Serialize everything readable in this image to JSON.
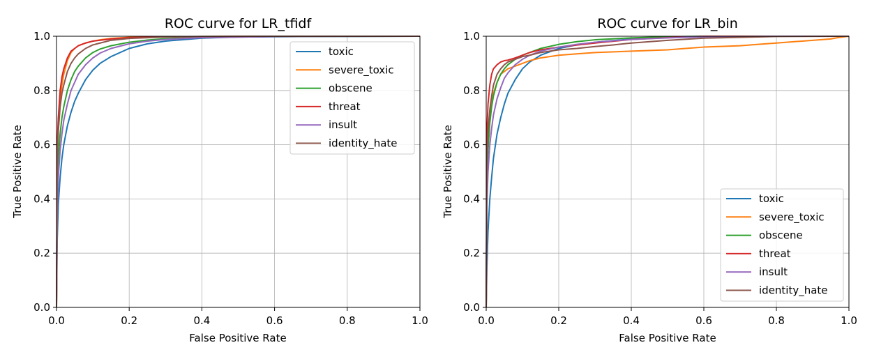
{
  "chart_data": [
    {
      "type": "line",
      "title": "ROC curve for LR_tfidf",
      "xlabel": "False Positive Rate",
      "ylabel": "True Positive Rate",
      "xlim": [
        0.0,
        1.0
      ],
      "ylim": [
        0.0,
        1.0
      ],
      "xticks": [
        "0.0",
        "0.2",
        "0.4",
        "0.6",
        "0.8",
        "1.0"
      ],
      "yticks": [
        "0.0",
        "0.2",
        "0.4",
        "0.6",
        "0.8",
        "1.0"
      ],
      "grid": true,
      "legend_position": "upper right",
      "series": [
        {
          "name": "toxic",
          "color": "#1f77b4",
          "x": [
            0,
            0.002,
            0.005,
            0.01,
            0.015,
            0.02,
            0.03,
            0.04,
            0.05,
            0.06,
            0.08,
            0.1,
            0.12,
            0.15,
            0.2,
            0.25,
            0.3,
            0.4,
            0.5,
            0.7,
            1.0
          ],
          "y": [
            0,
            0.25,
            0.38,
            0.48,
            0.55,
            0.6,
            0.67,
            0.72,
            0.76,
            0.79,
            0.84,
            0.875,
            0.9,
            0.925,
            0.955,
            0.972,
            0.982,
            0.993,
            0.997,
            0.999,
            1.0
          ]
        },
        {
          "name": "severe_toxic",
          "color": "#ff7f0e",
          "x": [
            0,
            0.002,
            0.005,
            0.01,
            0.015,
            0.02,
            0.03,
            0.04,
            0.05,
            0.06,
            0.08,
            0.1,
            0.12,
            0.15,
            0.2,
            0.3,
            0.4,
            0.6,
            1.0
          ],
          "y": [
            0,
            0.55,
            0.66,
            0.76,
            0.82,
            0.86,
            0.91,
            0.94,
            0.955,
            0.965,
            0.975,
            0.982,
            0.987,
            0.992,
            0.996,
            0.998,
            0.999,
            1.0,
            1.0
          ]
        },
        {
          "name": "obscene",
          "color": "#2ca02c",
          "x": [
            0,
            0.002,
            0.005,
            0.01,
            0.015,
            0.02,
            0.03,
            0.04,
            0.05,
            0.06,
            0.08,
            0.1,
            0.12,
            0.15,
            0.2,
            0.25,
            0.3,
            0.4,
            0.6,
            1.0
          ],
          "y": [
            0,
            0.4,
            0.55,
            0.64,
            0.7,
            0.74,
            0.8,
            0.84,
            0.87,
            0.89,
            0.92,
            0.94,
            0.953,
            0.965,
            0.978,
            0.986,
            0.991,
            0.996,
            0.999,
            1.0
          ]
        },
        {
          "name": "threat",
          "color": "#d62728",
          "x": [
            0,
            0.002,
            0.005,
            0.01,
            0.015,
            0.02,
            0.03,
            0.04,
            0.05,
            0.06,
            0.08,
            0.1,
            0.15,
            0.2,
            0.3,
            0.6,
            1.0
          ],
          "y": [
            0,
            0.6,
            0.7,
            0.8,
            0.85,
            0.88,
            0.92,
            0.945,
            0.955,
            0.965,
            0.975,
            0.982,
            0.99,
            0.995,
            0.998,
            1.0,
            1.0
          ]
        },
        {
          "name": "insult",
          "color": "#9467bd",
          "x": [
            0,
            0.002,
            0.005,
            0.01,
            0.015,
            0.02,
            0.03,
            0.04,
            0.05,
            0.06,
            0.08,
            0.1,
            0.12,
            0.15,
            0.2,
            0.25,
            0.3,
            0.4,
            0.6,
            1.0
          ],
          "y": [
            0,
            0.35,
            0.48,
            0.58,
            0.64,
            0.69,
            0.75,
            0.8,
            0.83,
            0.86,
            0.895,
            0.92,
            0.938,
            0.955,
            0.972,
            0.982,
            0.988,
            0.995,
            0.999,
            1.0
          ]
        },
        {
          "name": "identity_hate",
          "color": "#8c564b",
          "x": [
            0,
            0.002,
            0.005,
            0.01,
            0.015,
            0.02,
            0.03,
            0.04,
            0.05,
            0.06,
            0.08,
            0.1,
            0.12,
            0.15,
            0.2,
            0.3,
            0.4,
            0.6,
            1.0
          ],
          "y": [
            0,
            0.55,
            0.65,
            0.74,
            0.79,
            0.82,
            0.87,
            0.9,
            0.92,
            0.935,
            0.955,
            0.968,
            0.975,
            0.985,
            0.992,
            0.997,
            0.999,
            1.0,
            1.0
          ]
        }
      ]
    },
    {
      "type": "line",
      "title": "ROC curve for LR_bin",
      "xlabel": "False Positive Rate",
      "ylabel": "True Positive Rate",
      "xlim": [
        0.0,
        1.0
      ],
      "ylim": [
        0.0,
        1.0
      ],
      "xticks": [
        "0.0",
        "0.2",
        "0.4",
        "0.6",
        "0.8",
        "1.0"
      ],
      "yticks": [
        "0.0",
        "0.2",
        "0.4",
        "0.6",
        "0.8",
        "1.0"
      ],
      "grid": true,
      "legend_position": "lower right",
      "series": [
        {
          "name": "toxic",
          "color": "#1f77b4",
          "x": [
            0,
            0.002,
            0.005,
            0.01,
            0.015,
            0.02,
            0.03,
            0.04,
            0.05,
            0.06,
            0.08,
            0.1,
            0.12,
            0.15,
            0.2,
            0.25,
            0.3,
            0.4,
            0.5,
            0.6,
            0.8,
            1.0
          ],
          "y": [
            0,
            0.15,
            0.28,
            0.4,
            0.48,
            0.55,
            0.64,
            0.7,
            0.75,
            0.79,
            0.84,
            0.88,
            0.905,
            0.93,
            0.955,
            0.968,
            0.978,
            0.99,
            0.995,
            0.998,
            1.0,
            1.0
          ]
        },
        {
          "name": "severe_toxic",
          "color": "#ff7f0e",
          "x": [
            0,
            0.002,
            0.005,
            0.01,
            0.015,
            0.02,
            0.03,
            0.04,
            0.06,
            0.08,
            0.1,
            0.12,
            0.15,
            0.2,
            0.25,
            0.3,
            0.4,
            0.5,
            0.55,
            0.6,
            0.7,
            0.75,
            0.8,
            0.85,
            0.9,
            0.95,
            0.97,
            1.0
          ],
          "y": [
            0,
            0.5,
            0.62,
            0.7,
            0.75,
            0.79,
            0.83,
            0.86,
            0.88,
            0.89,
            0.9,
            0.91,
            0.92,
            0.93,
            0.935,
            0.94,
            0.945,
            0.95,
            0.955,
            0.96,
            0.965,
            0.97,
            0.975,
            0.98,
            0.985,
            0.99,
            0.995,
            1.0
          ]
        },
        {
          "name": "obscene",
          "color": "#2ca02c",
          "x": [
            0,
            0.002,
            0.005,
            0.01,
            0.015,
            0.02,
            0.03,
            0.04,
            0.05,
            0.06,
            0.08,
            0.1,
            0.12,
            0.15,
            0.2,
            0.25,
            0.3,
            0.4,
            0.5,
            0.6,
            1.0
          ],
          "y": [
            0,
            0.45,
            0.58,
            0.68,
            0.74,
            0.78,
            0.83,
            0.86,
            0.88,
            0.895,
            0.915,
            0.93,
            0.94,
            0.955,
            0.97,
            0.98,
            0.987,
            0.994,
            0.998,
            1.0,
            1.0
          ]
        },
        {
          "name": "threat",
          "color": "#d62728",
          "x": [
            0,
            0.002,
            0.005,
            0.01,
            0.015,
            0.02,
            0.03,
            0.04,
            0.05,
            0.06,
            0.08,
            0.1,
            0.12,
            0.15,
            0.2,
            0.3,
            0.4,
            0.5,
            0.6,
            1.0
          ],
          "y": [
            0,
            0.65,
            0.75,
            0.82,
            0.86,
            0.88,
            0.895,
            0.905,
            0.91,
            0.912,
            0.92,
            0.93,
            0.94,
            0.95,
            0.96,
            0.975,
            0.988,
            0.995,
            1.0,
            1.0
          ]
        },
        {
          "name": "insult",
          "color": "#9467bd",
          "x": [
            0,
            0.002,
            0.005,
            0.01,
            0.015,
            0.02,
            0.03,
            0.04,
            0.05,
            0.06,
            0.08,
            0.1,
            0.12,
            0.15,
            0.2,
            0.25,
            0.3,
            0.4,
            0.5,
            0.6,
            0.8,
            1.0
          ],
          "y": [
            0,
            0.38,
            0.5,
            0.6,
            0.66,
            0.71,
            0.77,
            0.81,
            0.845,
            0.865,
            0.895,
            0.915,
            0.93,
            0.945,
            0.96,
            0.97,
            0.978,
            0.988,
            0.994,
            0.998,
            1.0,
            1.0
          ]
        },
        {
          "name": "identity_hate",
          "color": "#8c564b",
          "x": [
            0,
            0.002,
            0.005,
            0.01,
            0.015,
            0.02,
            0.03,
            0.04,
            0.05,
            0.06,
            0.08,
            0.1,
            0.12,
            0.15,
            0.2,
            0.25,
            0.3,
            0.35,
            0.4,
            0.5,
            0.6,
            0.8,
            1.0
          ],
          "y": [
            0,
            0.55,
            0.65,
            0.73,
            0.78,
            0.82,
            0.86,
            0.88,
            0.895,
            0.905,
            0.915,
            0.925,
            0.93,
            0.94,
            0.95,
            0.955,
            0.962,
            0.968,
            0.975,
            0.985,
            0.993,
            0.999,
            1.0
          ]
        }
      ]
    }
  ]
}
